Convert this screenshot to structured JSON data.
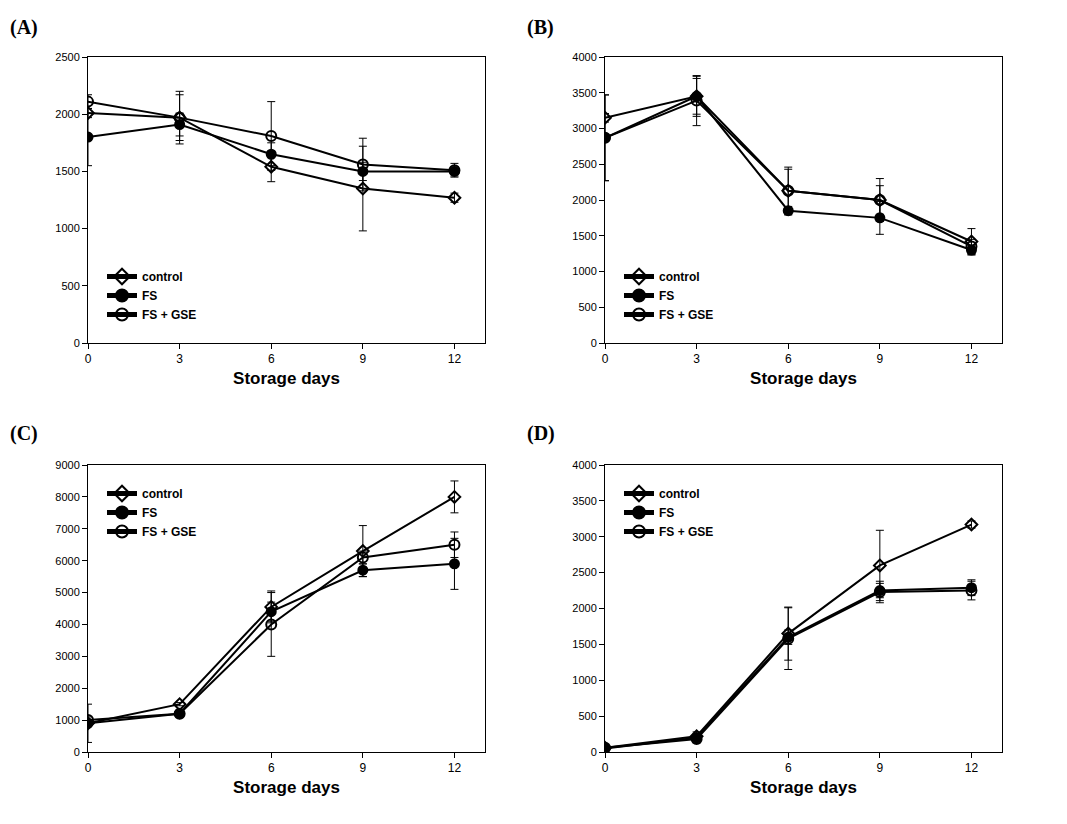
{
  "chart_data": [
    {
      "type": "line",
      "title": "(A)",
      "x_label": "Storage days",
      "x": [
        0,
        3,
        6,
        9,
        12
      ],
      "xlim": [
        0,
        13
      ],
      "xticks": [
        0,
        3,
        6,
        9,
        12
      ],
      "ylim": [
        0,
        2500
      ],
      "yticks": [
        0,
        500,
        1000,
        1500,
        2000,
        2500
      ],
      "grid": false,
      "legend": "lower left",
      "series": [
        {
          "name": "control",
          "color": "#000000",
          "marker": "diamond-open",
          "values": [
            2010,
            1970,
            1540,
            1350,
            1270
          ],
          "errors": [
            40,
            230,
            130,
            370,
            40
          ]
        },
        {
          "name": "FS",
          "color": "#000000",
          "marker": "circle",
          "values": [
            1800,
            1910,
            1650,
            1500,
            1500
          ],
          "errors": [
            250,
            100,
            100,
            80,
            40
          ]
        },
        {
          "name": "FS + GSE",
          "color": "#000000",
          "marker": "circle-open",
          "values": [
            2110,
            1970,
            1810,
            1560,
            1510
          ],
          "errors": [
            60,
            200,
            300,
            230,
            60
          ]
        }
      ]
    },
    {
      "type": "line",
      "title": "(B)",
      "x_label": "Storage days",
      "x": [
        0,
        3,
        6,
        9,
        12
      ],
      "xlim": [
        0,
        13
      ],
      "xticks": [
        0,
        3,
        6,
        9,
        12
      ],
      "ylim": [
        0,
        4000
      ],
      "yticks": [
        0,
        500,
        1000,
        1500,
        2000,
        2500,
        3000,
        3500,
        4000
      ],
      "grid": false,
      "legend": "lower left",
      "series": [
        {
          "name": "control",
          "color": "#000000",
          "marker": "diamond-open",
          "values": [
            3150,
            3450,
            2130,
            2000,
            1420
          ],
          "errors": [
            60,
            280,
            300,
            300,
            180
          ]
        },
        {
          "name": "FS",
          "color": "#000000",
          "marker": "circle",
          "values": [
            2870,
            3450,
            1850,
            1750,
            1300
          ],
          "errors": [
            600,
            250,
            60,
            230,
            70
          ]
        },
        {
          "name": "FS + GSE",
          "color": "#000000",
          "marker": "circle-open",
          "values": [
            2870,
            3390,
            2130,
            2000,
            1350
          ],
          "errors": [
            600,
            350,
            330,
            200,
            100
          ]
        }
      ]
    },
    {
      "type": "line",
      "title": "(C)",
      "x_label": "Storage days",
      "x": [
        0,
        3,
        6,
        9,
        12
      ],
      "xlim": [
        0,
        13
      ],
      "xticks": [
        0,
        3,
        6,
        9,
        12
      ],
      "ylim": [
        0,
        9000
      ],
      "yticks": [
        0,
        1000,
        2000,
        3000,
        4000,
        5000,
        6000,
        7000,
        8000,
        9000
      ],
      "grid": false,
      "legend": "upper left",
      "series": [
        {
          "name": "control",
          "color": "#000000",
          "marker": "diamond-open",
          "values": [
            900,
            1500,
            4550,
            6300,
            8000
          ],
          "errors": [
            600,
            50,
            500,
            800,
            500
          ]
        },
        {
          "name": "FS",
          "color": "#000000",
          "marker": "circle",
          "values": [
            900,
            1200,
            4400,
            5700,
            5900
          ],
          "errors": [
            100,
            80,
            300,
            200,
            800
          ]
        },
        {
          "name": "FS + GSE",
          "color": "#000000",
          "marker": "circle-open",
          "values": [
            1000,
            1200,
            4000,
            6100,
            6500
          ],
          "errors": [
            100,
            80,
            1000,
            200,
            400
          ]
        }
      ]
    },
    {
      "type": "line",
      "title": "(D)",
      "x_label": "Storage days",
      "x": [
        0,
        3,
        6,
        9,
        12
      ],
      "xlim": [
        0,
        13
      ],
      "xticks": [
        0,
        3,
        6,
        9,
        12
      ],
      "ylim": [
        0,
        4000
      ],
      "yticks": [
        0,
        500,
        1000,
        1500,
        2000,
        2500,
        3000,
        3500,
        4000
      ],
      "grid": false,
      "legend": "upper left",
      "series": [
        {
          "name": "control",
          "color": "#000000",
          "marker": "diamond-open",
          "values": [
            60,
            220,
            1650,
            2600,
            3170
          ],
          "errors": [
            20,
            60,
            370,
            490,
            50
          ]
        },
        {
          "name": "FS",
          "color": "#000000",
          "marker": "circle",
          "values": [
            50,
            200,
            1600,
            2250,
            2290
          ],
          "errors": [
            20,
            50,
            100,
            100,
            110
          ]
        },
        {
          "name": "FS + GSE",
          "color": "#000000",
          "marker": "circle-open",
          "values": [
            60,
            180,
            1580,
            2230,
            2250
          ],
          "errors": [
            20,
            50,
            430,
            150,
            130
          ]
        }
      ]
    }
  ]
}
